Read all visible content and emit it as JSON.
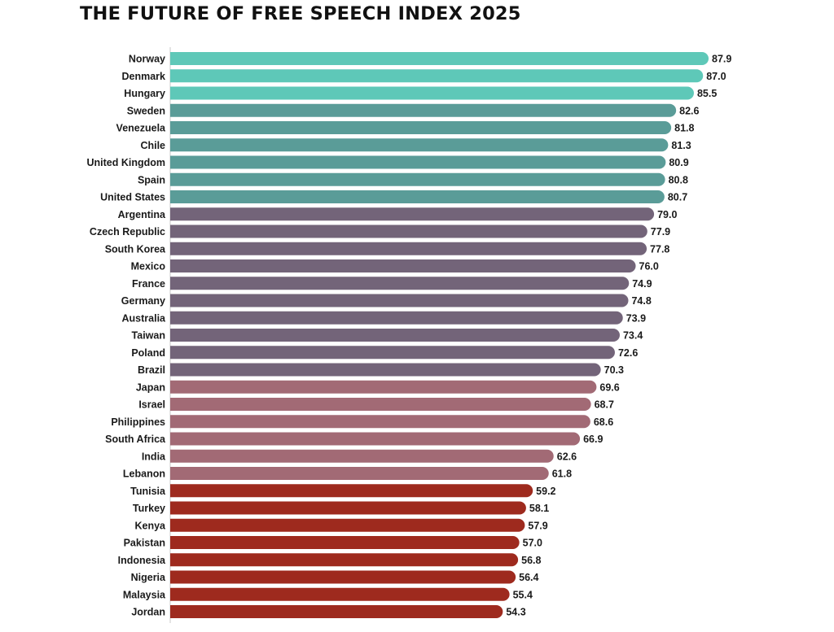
{
  "title": "THE FUTURE OF FREE SPEECH INDEX 2025",
  "chart_data": {
    "type": "bar",
    "orientation": "horizontal",
    "title": "THE FUTURE OF FREE SPEECH INDEX 2025",
    "xlabel": "",
    "ylabel": "",
    "xlim": [
      0,
      100
    ],
    "grid": false,
    "legend": "none",
    "categories": [
      "Norway",
      "Denmark",
      "Hungary",
      "Sweden",
      "Venezuela",
      "Chile",
      "United Kingdom",
      "Spain",
      "United States",
      "Argentina",
      "Czech Republic",
      "South Korea",
      "Mexico",
      "France",
      "Germany",
      "Australia",
      "Taiwan",
      "Poland",
      "Brazil",
      "Japan",
      "Israel",
      "Philippines",
      "South Africa",
      "India",
      "Lebanon",
      "Tunisia",
      "Turkey",
      "Kenya",
      "Pakistan",
      "Indonesia",
      "Nigeria",
      "Malaysia",
      "Jordan"
    ],
    "values": [
      87.9,
      87.0,
      85.5,
      82.6,
      81.8,
      81.3,
      80.9,
      80.8,
      80.7,
      79.0,
      77.9,
      77.8,
      76.0,
      74.9,
      74.8,
      73.9,
      73.4,
      72.6,
      70.3,
      69.6,
      68.7,
      68.6,
      66.9,
      62.6,
      61.8,
      59.2,
      58.1,
      57.9,
      57.0,
      56.8,
      56.4,
      55.4,
      54.3
    ],
    "value_labels": [
      "87.9",
      "87.0",
      "85.5",
      "82.6",
      "81.8",
      "81.3",
      "80.9",
      "80.8",
      "80.7",
      "79.0",
      "77.9",
      "77.8",
      "76.0",
      "74.9",
      "74.8",
      "73.9",
      "73.4",
      "72.6",
      "70.3",
      "69.6",
      "68.7",
      "68.6",
      "66.9",
      "62.6",
      "61.8",
      "59.2",
      "58.1",
      "57.9",
      "57.0",
      "56.8",
      "56.4",
      "55.4",
      "54.3"
    ],
    "colors": [
      "#5ec8b8",
      "#5ec8b8",
      "#5ec8b8",
      "#5a9c98",
      "#5a9c98",
      "#5a9c98",
      "#5a9c98",
      "#5a9c98",
      "#5a9c98",
      "#736479",
      "#736479",
      "#736479",
      "#736479",
      "#736479",
      "#736479",
      "#736479",
      "#736479",
      "#736479",
      "#736479",
      "#a26a75",
      "#a26a75",
      "#a26a75",
      "#a26a75",
      "#a26a75",
      "#a26a75",
      "#9e2a1e",
      "#9e2a1e",
      "#9e2a1e",
      "#9e2a1e",
      "#9e2a1e",
      "#9e2a1e",
      "#9e2a1e",
      "#9e2a1e"
    ]
  }
}
